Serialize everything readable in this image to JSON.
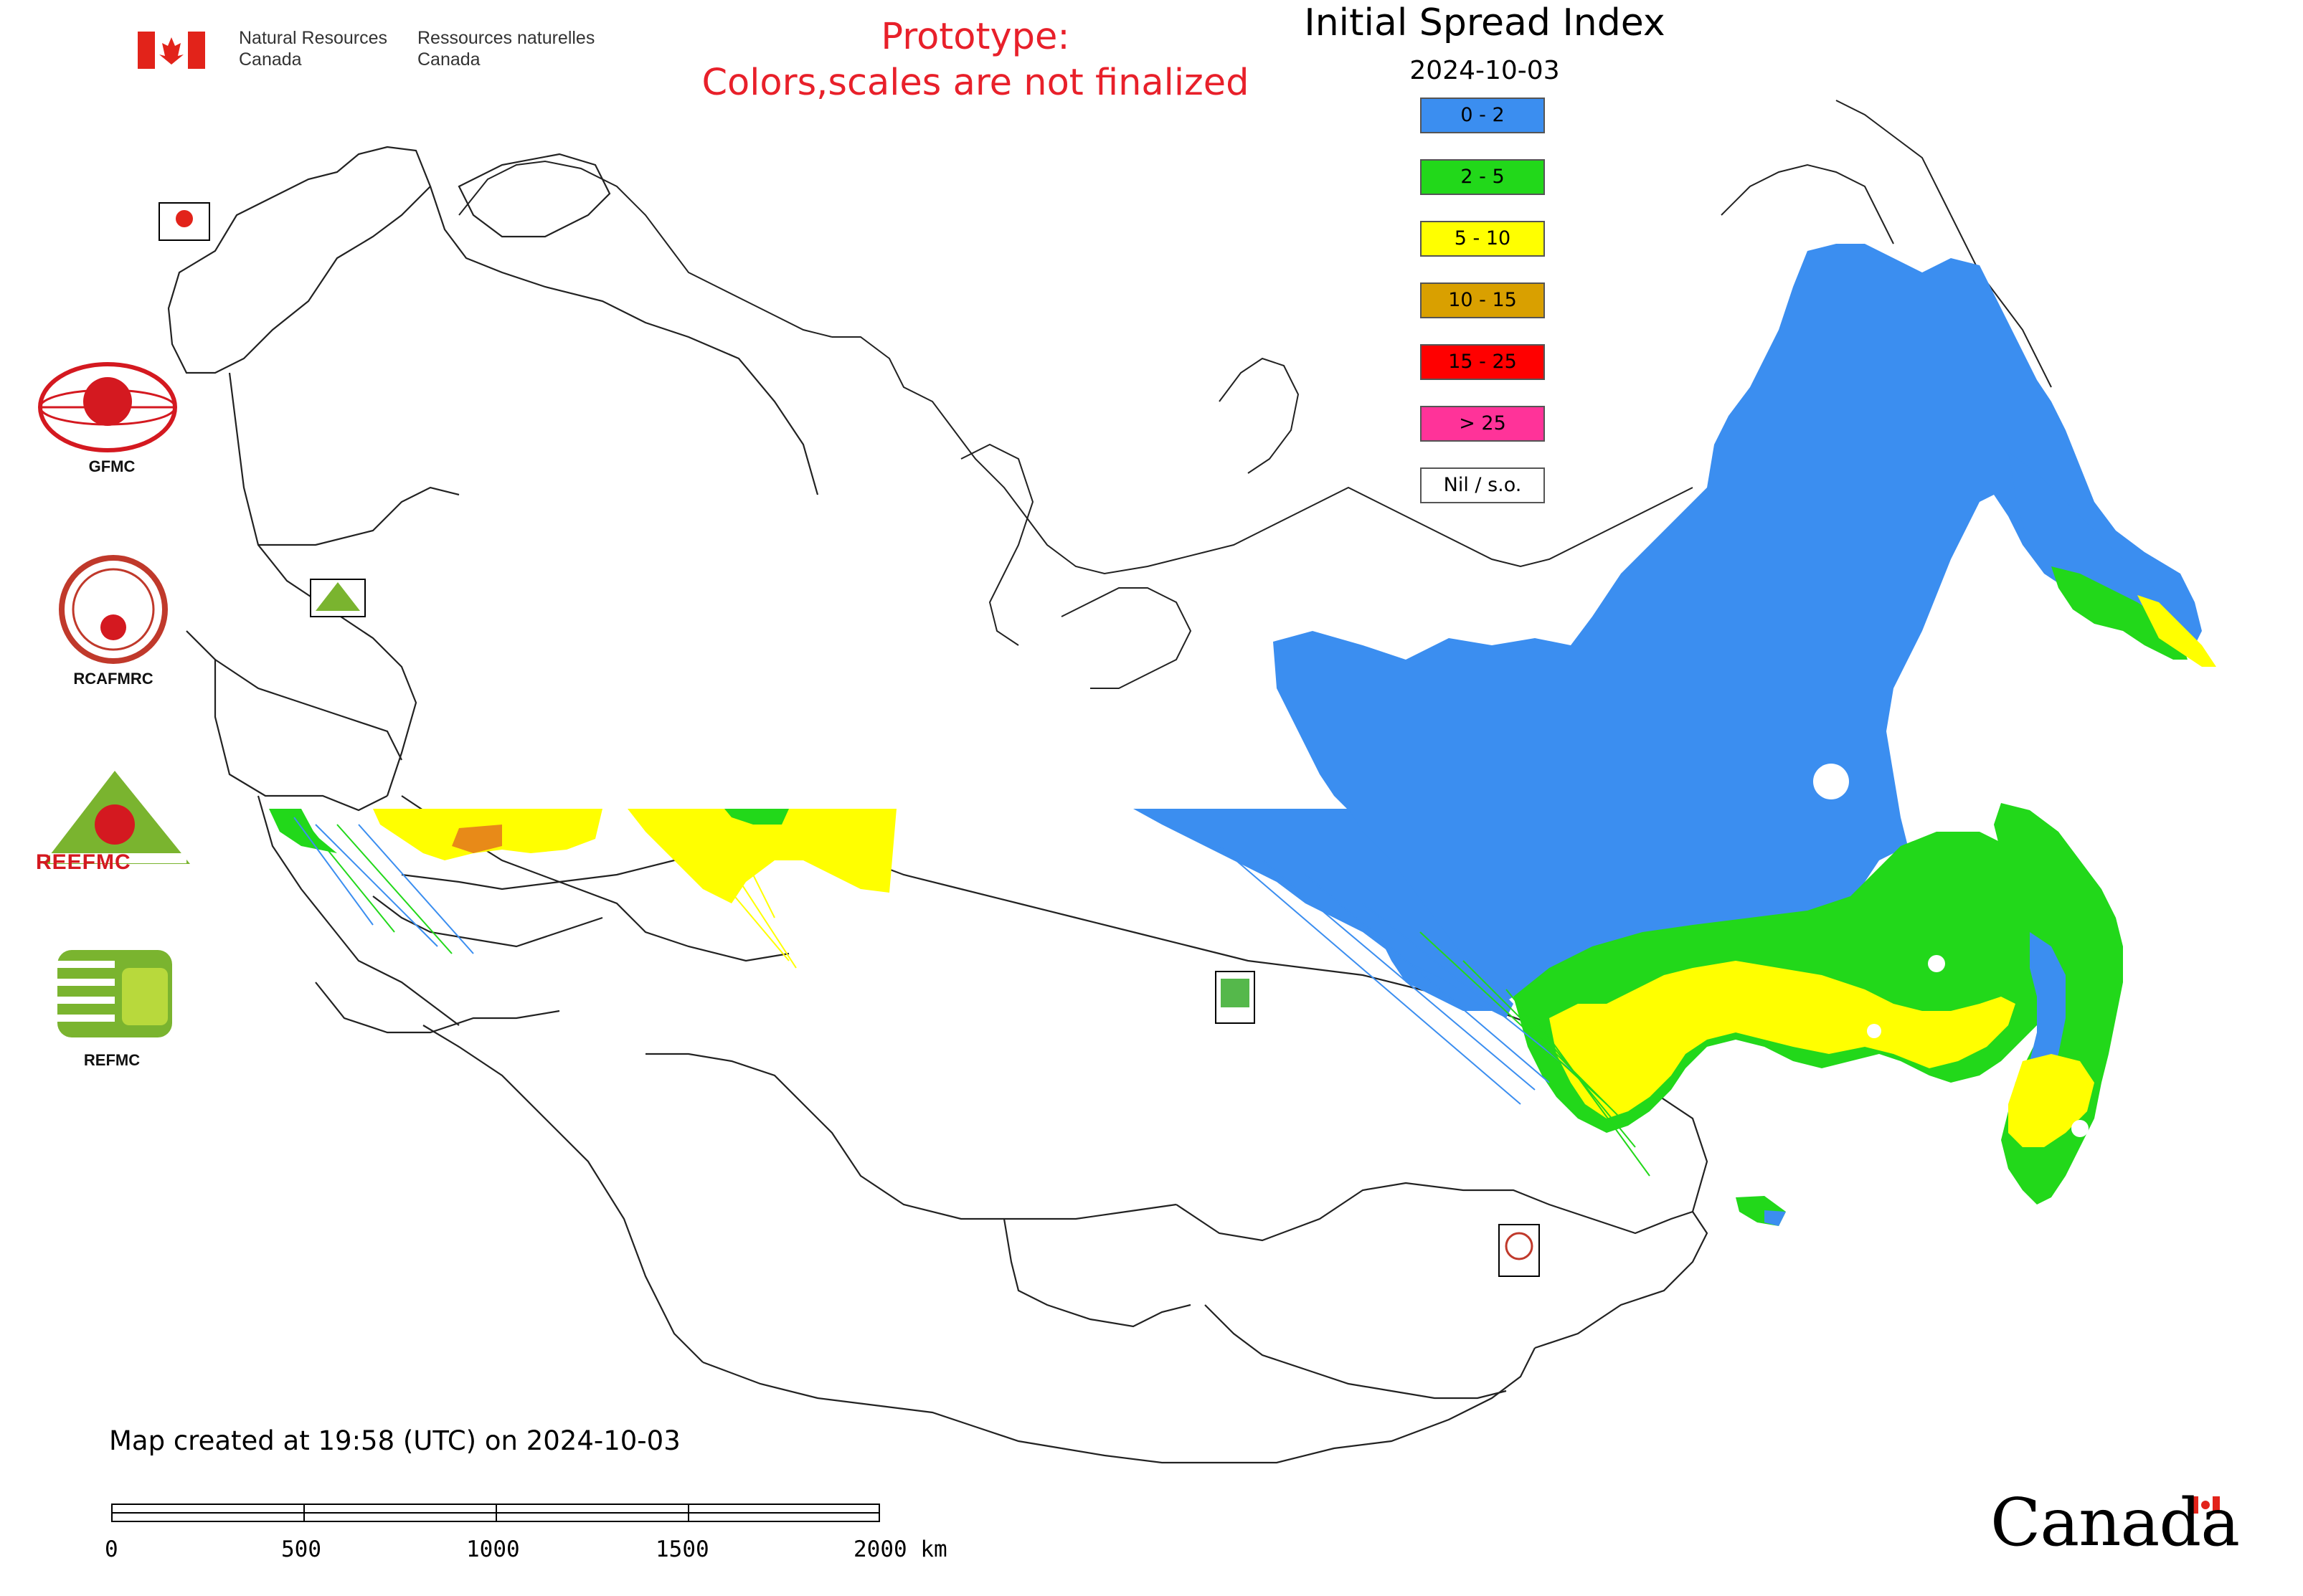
{
  "header": {
    "agency_en": [
      "Natural Resources",
      "Canada"
    ],
    "agency_fr": [
      "Ressources naturelles",
      "Canada"
    ],
    "prototype_line1": "Prototype:",
    "prototype_line2": "Colors,scales are not finalized"
  },
  "map": {
    "title": "Initial Spread Index",
    "date": "2024-10-03",
    "created_note": "Map created at 19:58 (UTC) on 2024-10-03",
    "legend": [
      {
        "label": "0 - 2",
        "color": "#3b8ef0"
      },
      {
        "label": "2 - 5",
        "color": "#22d81a"
      },
      {
        "label": "5 - 10",
        "color": "#ffff00"
      },
      {
        "label": "10 - 15",
        "color": "#d9a000"
      },
      {
        "label": "15 - 25",
        "color": "#ff0000"
      },
      {
        "label": "> 25",
        "color": "#ff3399"
      },
      {
        "label": "Nil / s.o.",
        "color": "#ffffff"
      }
    ]
  },
  "organizations": [
    {
      "label": "GFMC"
    },
    {
      "label": "RCAFMRC"
    },
    {
      "label": "REEFMC"
    },
    {
      "label": "REFMC"
    }
  ],
  "scale_bar": {
    "labels": [
      "0",
      "500",
      "1000",
      "1500",
      "2000 km"
    ]
  },
  "wordmark": "Canada",
  "colors": {
    "prototype_text": "#e8202a",
    "flag_red": "#e2231a"
  }
}
